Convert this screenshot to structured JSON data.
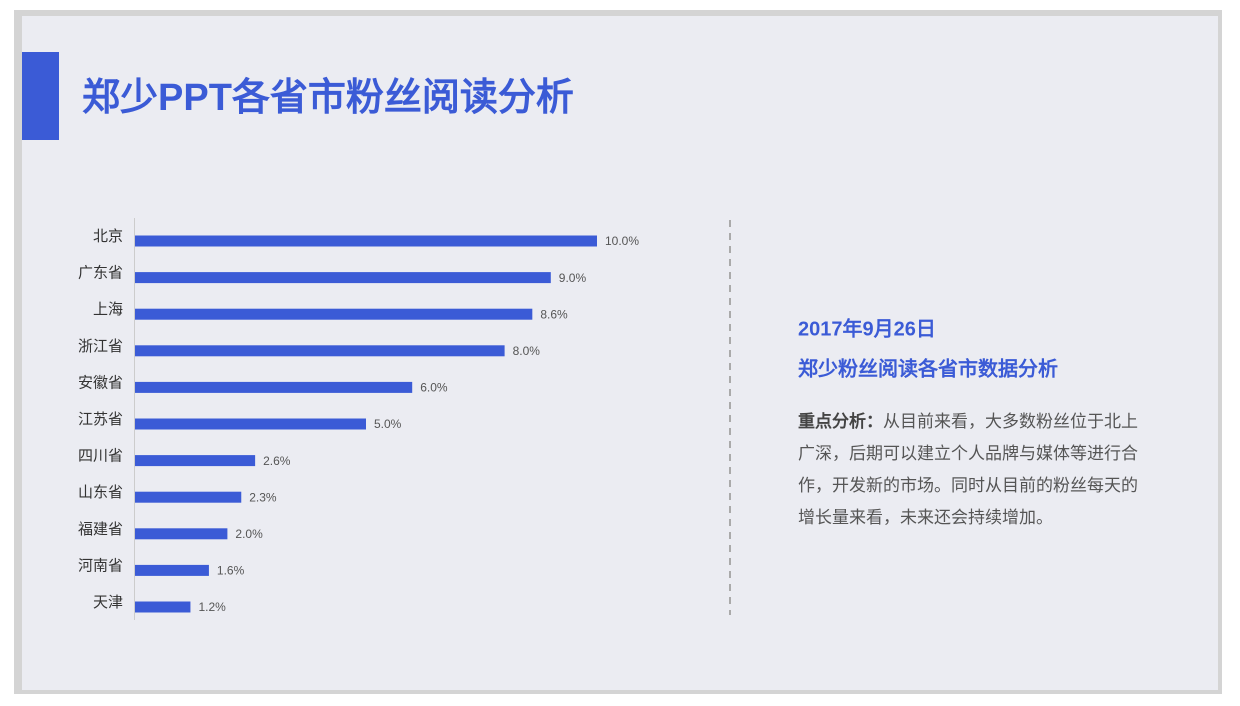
{
  "slide": {
    "title": "郑少PPT各省市粉丝阅读分析",
    "date": "2017年9月26日",
    "subtitle": "郑少粉丝阅读各省市数据分析",
    "note_label": "重点分析：",
    "note_text": "从目前来看，大多数粉丝位于北上广深，后期可以建立个人品牌与媒体等进行合作，开发新的市场。同时从目前的粉丝每天的增长量来看，未来还会持续增加。"
  },
  "chart_data": {
    "type": "bar",
    "orientation": "horizontal",
    "color": "#3b5bd6",
    "categories": [
      "北京",
      "广东省",
      "上海",
      "浙江省",
      "安徽省",
      "江苏省",
      "四川省",
      "山东省",
      "福建省",
      "河南省",
      "天津"
    ],
    "values": [
      10,
      9,
      8.6,
      8,
      6,
      5,
      2.6,
      2.3,
      2,
      1.6,
      1.2
    ],
    "value_labels": [
      "10.0%",
      "9.0%",
      "8.6%",
      "8.0%",
      "6.0%",
      "5.0%",
      "2.6%",
      "2.3%",
      "2.0%",
      "1.6%",
      "1.2%"
    ]
  }
}
